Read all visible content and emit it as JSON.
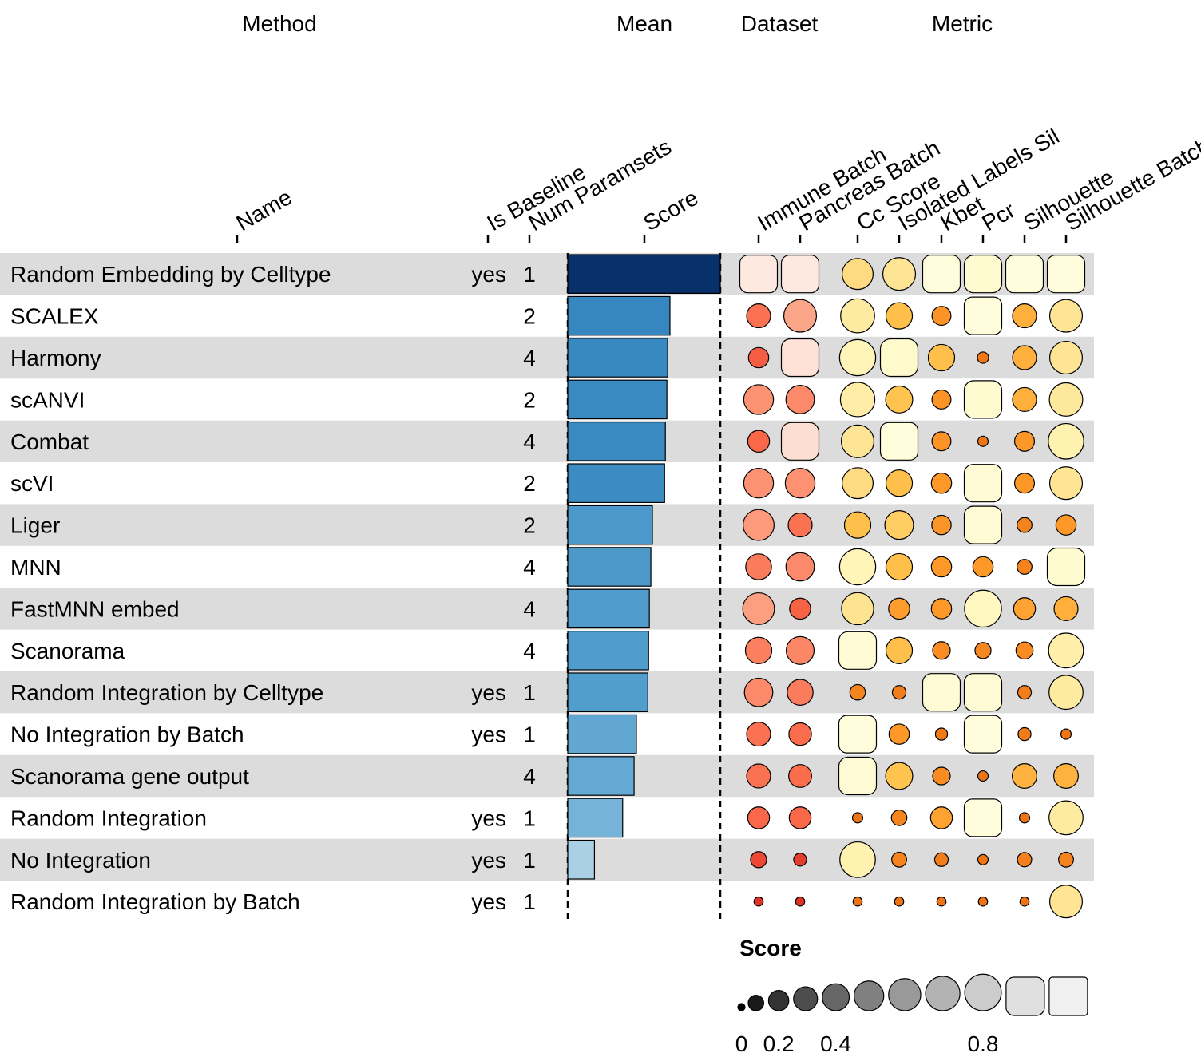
{
  "chart_data": {
    "type": "table",
    "group_headers": [
      "Method",
      "Mean",
      "Dataset",
      "Metric"
    ],
    "column_headers": {
      "name": "Name",
      "is_baseline": "Is Baseline",
      "num_paramsets": "Num Paramsets",
      "score": "Score",
      "datasets": [
        "Immune Batch",
        "Pancreas Batch"
      ],
      "metrics": [
        "Cc Score",
        "Isolated Labels Sil",
        "Kbet",
        "Pcr",
        "Silhouette",
        "Silhouette Batch"
      ]
    },
    "rows": [
      {
        "name": "Random Embedding by Celltype",
        "is_baseline": "yes",
        "num_paramsets": "1",
        "score": 1.0,
        "datasets": [
          0.95,
          0.95
        ],
        "metrics": [
          0.55,
          0.62,
          0.95,
          0.9,
          0.95,
          0.95
        ]
      },
      {
        "name": "SCALEX",
        "is_baseline": "",
        "num_paramsets": "2",
        "score": 0.67,
        "datasets": [
          0.3,
          0.62
        ],
        "metrics": [
          0.68,
          0.38,
          0.17,
          0.95,
          0.3,
          0.62
        ]
      },
      {
        "name": "Harmony",
        "is_baseline": "",
        "num_paramsets": "4",
        "score": 0.655,
        "datasets": [
          0.2,
          0.92
        ],
        "metrics": [
          0.78,
          0.88,
          0.38,
          0.04,
          0.3,
          0.62
        ]
      },
      {
        "name": "scANVI",
        "is_baseline": "",
        "num_paramsets": "2",
        "score": 0.65,
        "datasets": [
          0.5,
          0.45
        ],
        "metrics": [
          0.7,
          0.4,
          0.17,
          0.9,
          0.3,
          0.65
        ]
      },
      {
        "name": "Combat",
        "is_baseline": "",
        "num_paramsets": "4",
        "score": 0.64,
        "datasets": [
          0.24,
          0.9
        ],
        "metrics": [
          0.62,
          0.95,
          0.17,
          0.03,
          0.19,
          0.75
        ]
      },
      {
        "name": "scVI",
        "is_baseline": "",
        "num_paramsets": "2",
        "score": 0.635,
        "datasets": [
          0.5,
          0.5
        ],
        "metrics": [
          0.55,
          0.38,
          0.2,
          0.92,
          0.19,
          0.62
        ]
      },
      {
        "name": "Liger",
        "is_baseline": "",
        "num_paramsets": "2",
        "score": 0.555,
        "datasets": [
          0.55,
          0.3
        ],
        "metrics": [
          0.38,
          0.46,
          0.18,
          0.92,
          0.09,
          0.2
        ]
      },
      {
        "name": "MNN",
        "is_baseline": "",
        "num_paramsets": "4",
        "score": 0.545,
        "datasets": [
          0.36,
          0.45
        ],
        "metrics": [
          0.78,
          0.38,
          0.2,
          0.2,
          0.09,
          0.9
        ]
      },
      {
        "name": "FastMNN embed",
        "is_baseline": "",
        "num_paramsets": "4",
        "score": 0.535,
        "datasets": [
          0.58,
          0.22
        ],
        "metrics": [
          0.6,
          0.22,
          0.2,
          0.82,
          0.24,
          0.3
        ]
      },
      {
        "name": "Scanorama",
        "is_baseline": "",
        "num_paramsets": "4",
        "score": 0.53,
        "datasets": [
          0.38,
          0.43
        ],
        "metrics": [
          0.92,
          0.38,
          0.14,
          0.11,
          0.13,
          0.72
        ]
      },
      {
        "name": "Random Integration by Celltype",
        "is_baseline": "yes",
        "num_paramsets": "1",
        "score": 0.525,
        "datasets": [
          0.45,
          0.36
        ],
        "metrics": [
          0.1,
          0.07,
          0.92,
          0.92,
          0.07,
          0.68
        ]
      },
      {
        "name": "No Integration by Batch",
        "is_baseline": "yes",
        "num_paramsets": "1",
        "score": 0.45,
        "datasets": [
          0.3,
          0.26
        ],
        "metrics": [
          0.95,
          0.2,
          0.05,
          0.95,
          0.06,
          0.03
        ]
      },
      {
        "name": "Scanorama gene output",
        "is_baseline": "",
        "num_paramsets": "4",
        "score": 0.435,
        "datasets": [
          0.3,
          0.27
        ],
        "metrics": [
          0.92,
          0.4,
          0.14,
          0.03,
          0.32,
          0.32
        ]
      },
      {
        "name": "Random Integration",
        "is_baseline": "yes",
        "num_paramsets": "1",
        "score": 0.36,
        "datasets": [
          0.24,
          0.24
        ],
        "metrics": [
          0.03,
          0.1,
          0.24,
          0.95,
          0.03,
          0.68
        ]
      },
      {
        "name": "No Integration",
        "is_baseline": "yes",
        "num_paramsets": "1",
        "score": 0.175,
        "datasets": [
          0.11,
          0.06
        ],
        "metrics": [
          0.75,
          0.09,
          0.07,
          0.03,
          0.08,
          0.09
        ]
      },
      {
        "name": "Random Integration by Batch",
        "is_baseline": "yes",
        "num_paramsets": "1",
        "score": 0.0,
        "datasets": [
          0.02,
          0.02
        ],
        "metrics": [
          0.02,
          0.02,
          0.02,
          0.02,
          0.02,
          0.62
        ]
      }
    ],
    "legend": {
      "title": "Score",
      "tick_labels": [
        "0",
        "0.2",
        "0.4",
        "0.8"
      ],
      "tick_values": [
        0,
        0.2,
        0.4,
        0.8
      ]
    },
    "colors": {
      "row_stripe": "#dcdcdc",
      "bar_scale": [
        "#f7fbff",
        "#9ecae1",
        "#6baed6",
        "#4292c6",
        "#2171b5",
        "#08306b"
      ],
      "dataset_scale": [
        "#fff5f0",
        "#fcbba1",
        "#fc9272",
        "#fb6a4a",
        "#de2d26"
      ],
      "metric_scale": [
        "#ffffe5",
        "#fff7bc",
        "#fee391",
        "#fec44f",
        "#fe9929",
        "#ec7014"
      ]
    }
  }
}
